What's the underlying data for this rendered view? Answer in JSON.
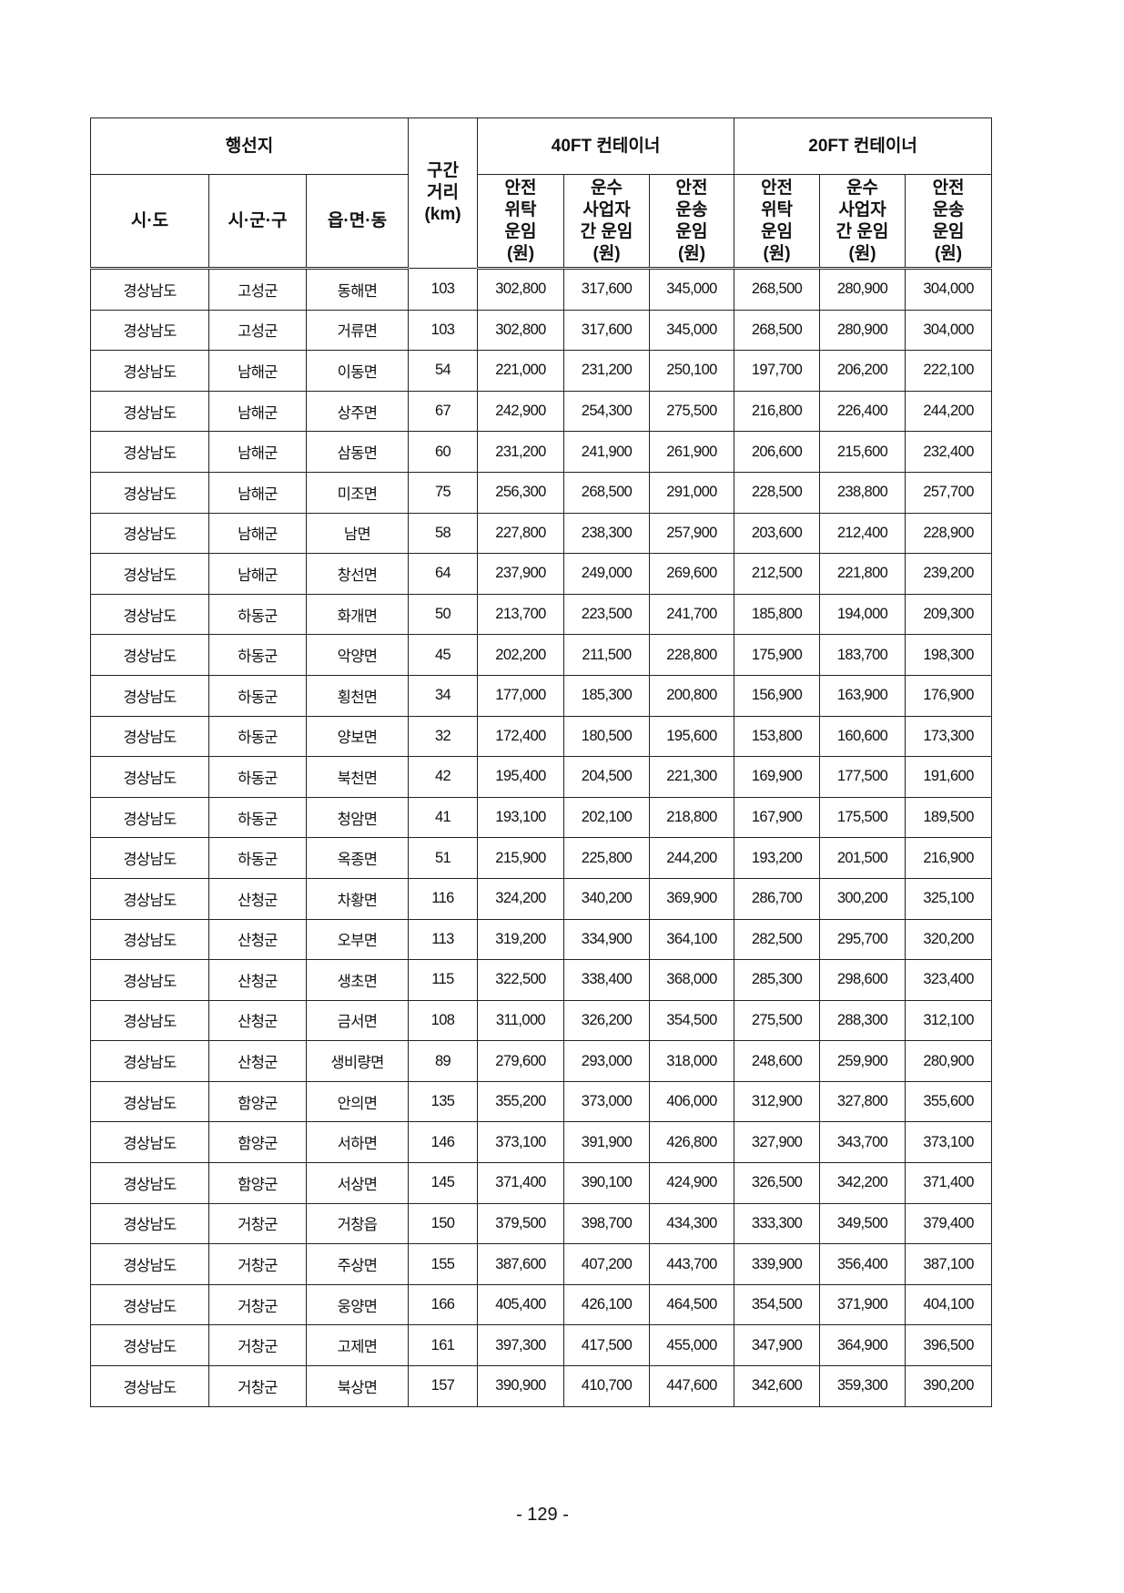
{
  "header": {
    "destination": "행선지",
    "distance": "구간\n거리\n(km)",
    "ft40": "40FT 컨테이너",
    "ft20": "20FT 컨테이너",
    "sido": "시·도",
    "sigungu": "시·군·구",
    "eupmyeondong": "읍·면·동",
    "rate_types": [
      "안전\n위탁\n운임\n(원)",
      "운수\n사업자\n간 운임\n(원)",
      "안전\n운송\n운임\n(원)"
    ]
  },
  "rows": [
    [
      "경상남도",
      "고성군",
      "동해면",
      "103",
      "302,800",
      "317,600",
      "345,000",
      "268,500",
      "280,900",
      "304,000"
    ],
    [
      "경상남도",
      "고성군",
      "거류면",
      "103",
      "302,800",
      "317,600",
      "345,000",
      "268,500",
      "280,900",
      "304,000"
    ],
    [
      "경상남도",
      "남해군",
      "이동면",
      "54",
      "221,000",
      "231,200",
      "250,100",
      "197,700",
      "206,200",
      "222,100"
    ],
    [
      "경상남도",
      "남해군",
      "상주면",
      "67",
      "242,900",
      "254,300",
      "275,500",
      "216,800",
      "226,400",
      "244,200"
    ],
    [
      "경상남도",
      "남해군",
      "삼동면",
      "60",
      "231,200",
      "241,900",
      "261,900",
      "206,600",
      "215,600",
      "232,400"
    ],
    [
      "경상남도",
      "남해군",
      "미조면",
      "75",
      "256,300",
      "268,500",
      "291,000",
      "228,500",
      "238,800",
      "257,700"
    ],
    [
      "경상남도",
      "남해군",
      "남면",
      "58",
      "227,800",
      "238,300",
      "257,900",
      "203,600",
      "212,400",
      "228,900"
    ],
    [
      "경상남도",
      "남해군",
      "창선면",
      "64",
      "237,900",
      "249,000",
      "269,600",
      "212,500",
      "221,800",
      "239,200"
    ],
    [
      "경상남도",
      "하동군",
      "화개면",
      "50",
      "213,700",
      "223,500",
      "241,700",
      "185,800",
      "194,000",
      "209,300"
    ],
    [
      "경상남도",
      "하동군",
      "악양면",
      "45",
      "202,200",
      "211,500",
      "228,800",
      "175,900",
      "183,700",
      "198,300"
    ],
    [
      "경상남도",
      "하동군",
      "횡천면",
      "34",
      "177,000",
      "185,300",
      "200,800",
      "156,900",
      "163,900",
      "176,900"
    ],
    [
      "경상남도",
      "하동군",
      "양보면",
      "32",
      "172,400",
      "180,500",
      "195,600",
      "153,800",
      "160,600",
      "173,300"
    ],
    [
      "경상남도",
      "하동군",
      "북천면",
      "42",
      "195,400",
      "204,500",
      "221,300",
      "169,900",
      "177,500",
      "191,600"
    ],
    [
      "경상남도",
      "하동군",
      "청암면",
      "41",
      "193,100",
      "202,100",
      "218,800",
      "167,900",
      "175,500",
      "189,500"
    ],
    [
      "경상남도",
      "하동군",
      "옥종면",
      "51",
      "215,900",
      "225,800",
      "244,200",
      "193,200",
      "201,500",
      "216,900"
    ],
    [
      "경상남도",
      "산청군",
      "차황면",
      "116",
      "324,200",
      "340,200",
      "369,900",
      "286,700",
      "300,200",
      "325,100"
    ],
    [
      "경상남도",
      "산청군",
      "오부면",
      "113",
      "319,200",
      "334,900",
      "364,100",
      "282,500",
      "295,700",
      "320,200"
    ],
    [
      "경상남도",
      "산청군",
      "생초면",
      "115",
      "322,500",
      "338,400",
      "368,000",
      "285,300",
      "298,600",
      "323,400"
    ],
    [
      "경상남도",
      "산청군",
      "금서면",
      "108",
      "311,000",
      "326,200",
      "354,500",
      "275,500",
      "288,300",
      "312,100"
    ],
    [
      "경상남도",
      "산청군",
      "생비량면",
      "89",
      "279,600",
      "293,000",
      "318,000",
      "248,600",
      "259,900",
      "280,900"
    ],
    [
      "경상남도",
      "함양군",
      "안의면",
      "135",
      "355,200",
      "373,000",
      "406,000",
      "312,900",
      "327,800",
      "355,600"
    ],
    [
      "경상남도",
      "함양군",
      "서하면",
      "146",
      "373,100",
      "391,900",
      "426,800",
      "327,900",
      "343,700",
      "373,100"
    ],
    [
      "경상남도",
      "함양군",
      "서상면",
      "145",
      "371,400",
      "390,100",
      "424,900",
      "326,500",
      "342,200",
      "371,400"
    ],
    [
      "경상남도",
      "거창군",
      "거창읍",
      "150",
      "379,500",
      "398,700",
      "434,300",
      "333,300",
      "349,500",
      "379,400"
    ],
    [
      "경상남도",
      "거창군",
      "주상면",
      "155",
      "387,600",
      "407,200",
      "443,700",
      "339,900",
      "356,400",
      "387,100"
    ],
    [
      "경상남도",
      "거창군",
      "웅양면",
      "166",
      "405,400",
      "426,100",
      "464,500",
      "354,500",
      "371,900",
      "404,100"
    ],
    [
      "경상남도",
      "거창군",
      "고제면",
      "161",
      "397,300",
      "417,500",
      "455,000",
      "347,900",
      "364,900",
      "396,500"
    ],
    [
      "경상남도",
      "거창군",
      "북상면",
      "157",
      "390,900",
      "410,700",
      "447,600",
      "342,600",
      "359,300",
      "390,200"
    ]
  ],
  "page_number": "- 129 -"
}
